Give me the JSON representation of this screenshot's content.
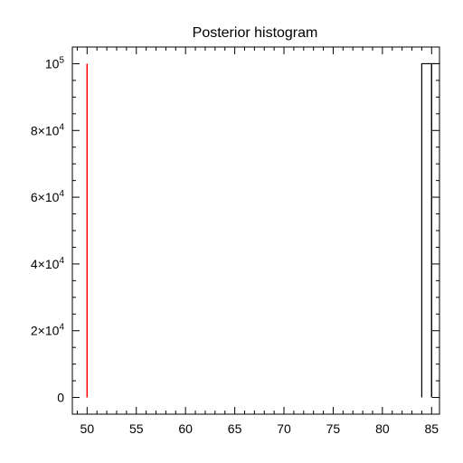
{
  "chart_data": {
    "type": "histogram",
    "title": "Posterior histogram",
    "xlabel": "",
    "ylabel": "",
    "xlim": [
      48.5,
      85.8
    ],
    "ylim": [
      -5000,
      105000
    ],
    "x_ticks": [
      50,
      55,
      60,
      65,
      70,
      75,
      80,
      85
    ],
    "x_minor_step": 1,
    "y_ticks": [
      {
        "value": 0,
        "base": "0",
        "exp": ""
      },
      {
        "value": 20000,
        "base": "2×10",
        "exp": "4"
      },
      {
        "value": 40000,
        "base": "4×10",
        "exp": "4"
      },
      {
        "value": 60000,
        "base": "6×10",
        "exp": "4"
      },
      {
        "value": 80000,
        "base": "8×10",
        "exp": "4"
      },
      {
        "value": 100000,
        "base": "10",
        "exp": "5"
      }
    ],
    "y_minor_step": 5000,
    "grid": false,
    "marker_line": {
      "x": 50,
      "y_from": 0,
      "y_to": 100000,
      "color": "#ff0000"
    },
    "bins": [
      {
        "x0": 84,
        "x1": 85,
        "count": 100000
      },
      {
        "x0": 85,
        "x1": 86,
        "count": 100000
      }
    ],
    "bar_color": "#000000"
  }
}
